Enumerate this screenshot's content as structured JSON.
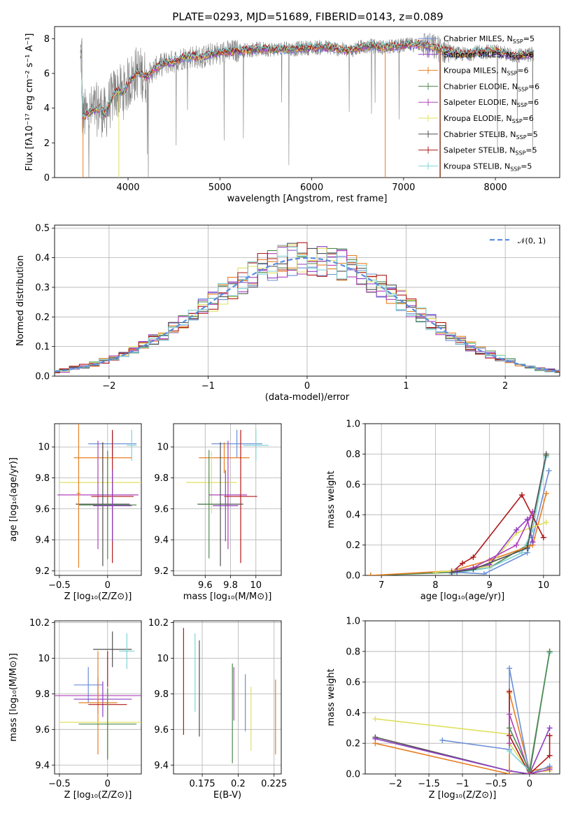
{
  "colors": {
    "grid": "#b0b0b0",
    "axis": "#000000",
    "gray": "#808080"
  },
  "models": [
    {
      "name": "Chabrier MILES, N",
      "sub": "SSP",
      "eq": "=5",
      "color": "#6b8fd6"
    },
    {
      "name": "Salpeter MILES, N",
      "sub": "SSP",
      "eq": "=6",
      "color": "#8e3ec2"
    },
    {
      "name": "Kroupa MILES, N",
      "sub": "SSP",
      "eq": "=6",
      "color": "#e67f22"
    },
    {
      "name": "Chabrier ELODIE, N",
      "sub": "SSP",
      "eq": "=6",
      "color": "#4f8a4f"
    },
    {
      "name": "Salpeter ELODIE, N",
      "sub": "SSP",
      "eq": "=6",
      "color": "#b040b8"
    },
    {
      "name": "Kroupa ELODIE, N",
      "sub": "SSP",
      "eq": "=6",
      "color": "#e0e060"
    },
    {
      "name": "Chabrier STELIB, N",
      "sub": "SSP",
      "eq": "=5",
      "color": "#505050"
    },
    {
      "name": "Salpeter STELIB, N",
      "sub": "SSP",
      "eq": "=5",
      "color": "#b01818"
    },
    {
      "name": "Kroupa STELIB, N",
      "sub": "SSP",
      "eq": "=5",
      "color": "#7fd4d4"
    }
  ],
  "chart_data": [
    {
      "id": "spectrum",
      "type": "line",
      "title": "PLATE=0293, MJD=51689, FIBERID=0143, z=0.089",
      "xlabel": "wavelength [Angstrom, rest frame]",
      "ylabel": "Flux [fλ10⁻¹⁷ erg cm⁻² s⁻¹ A⁻¹]",
      "xlim": [
        3200,
        8700
      ],
      "ylim": [
        0,
        8.7
      ],
      "xticks": [
        4000,
        5000,
        6000,
        7000,
        8000
      ],
      "yticks": [
        0,
        2,
        4,
        6,
        8
      ],
      "model_continuum": {
        "x": [
          3500,
          3600,
          3700,
          3750,
          3800,
          3850,
          3900,
          3950,
          4000,
          4100,
          4200,
          4300,
          4400,
          4500,
          4600,
          4700,
          4800,
          4900,
          5000,
          5200,
          5400,
          5600,
          5800,
          6000,
          6200,
          6400,
          6600,
          6800,
          7000,
          7200,
          7400,
          7600,
          7800,
          8000,
          8200,
          8400
        ],
        "y": [
          3.5,
          3.8,
          4.0,
          3.6,
          4.3,
          4.8,
          5.0,
          4.9,
          5.4,
          6.1,
          5.8,
          6.3,
          6.6,
          6.7,
          6.9,
          7.0,
          6.9,
          7.1,
          7.2,
          7.3,
          7.4,
          7.4,
          7.4,
          7.5,
          7.5,
          7.3,
          7.6,
          7.5,
          7.6,
          7.7,
          7.4,
          7.1,
          7.2,
          7.3,
          7.0,
          7.1
        ]
      }
    },
    {
      "id": "residuals",
      "type": "line",
      "xlabel": "(data-model)/error",
      "ylabel": "Normed distribution",
      "xlim": [
        -2.55,
        2.55
      ],
      "ylim": [
        0,
        0.51
      ],
      "xticks": [
        -2,
        -1,
        0,
        1,
        2
      ],
      "yticks": [
        0,
        0.1,
        0.2,
        0.3,
        0.4,
        0.5
      ],
      "gaussian_label": "𝒩(0, 1)",
      "gaussian_color": "#5b8de0"
    },
    {
      "id": "age_z",
      "type": "scatter",
      "xlabel": "Z [log₁₀(Z/Z⊙)]",
      "ylabel": "age  [log₁₀(age/yr)]",
      "xlim": [
        -0.55,
        0.35
      ],
      "ylim": [
        9.17,
        10.15
      ],
      "xticks": [
        -0.5,
        0.0
      ],
      "yticks": [
        9.2,
        9.4,
        9.6,
        9.8,
        10.0
      ],
      "points": [
        {
          "x": 0.05,
          "y": 10.02,
          "xerr": 0.25,
          "yerr": 0.08,
          "c": 0
        },
        {
          "x": 0.25,
          "y": 10.01,
          "xerr": 0.05,
          "yerr": 0.1,
          "c": 8
        },
        {
          "x": -0.05,
          "y": 9.93,
          "xerr": 0.3,
          "yerr": 0.1,
          "c": 2
        },
        {
          "x": 0.0,
          "y": 9.77,
          "xerr": 0.5,
          "yerr": 0.2,
          "c": 5
        },
        {
          "x": -0.1,
          "y": 9.69,
          "xerr": 0.42,
          "yerr": 0.35,
          "c": 4
        },
        {
          "x": 0.05,
          "y": 9.68,
          "xerr": 0.22,
          "yerr": 0.43,
          "c": 7
        },
        {
          "x": -0.05,
          "y": 9.63,
          "xerr": 0.28,
          "yerr": 0.4,
          "c": 6
        },
        {
          "x": 0.0,
          "y": 9.625,
          "xerr": 0.3,
          "yerr": 0.35,
          "c": 3
        },
        {
          "x": 0.05,
          "y": 9.62,
          "xerr": 0.2,
          "yerr": 0.23,
          "c": 1
        },
        {
          "x": -0.3,
          "y": 9.7,
          "xerr": 0.02,
          "yerr": 0.48,
          "c": 2
        }
      ]
    },
    {
      "id": "age_mass",
      "type": "scatter",
      "xlabel": "mass [log₁₀(M/M⊙)]",
      "ylabel": "",
      "xlim": [
        9.35,
        10.2
      ],
      "ylim": [
        9.17,
        10.15
      ],
      "xticks": [
        9.6,
        9.8,
        10.0
      ],
      "yticks": [
        9.2,
        9.4,
        9.6,
        9.8,
        10.0
      ],
      "points": [
        {
          "x": 9.85,
          "y": 10.02,
          "xerr": 0.2,
          "yerr": 0.09,
          "c": 0
        },
        {
          "x": 10.0,
          "y": 10.01,
          "xerr": 0.1,
          "yerr": 0.1,
          "c": 8
        },
        {
          "x": 9.75,
          "y": 9.93,
          "xerr": 0.2,
          "yerr": 0.1,
          "c": 2
        },
        {
          "x": 9.65,
          "y": 9.77,
          "xerr": 0.2,
          "yerr": 0.2,
          "c": 5
        },
        {
          "x": 9.78,
          "y": 9.69,
          "xerr": 0.15,
          "yerr": 0.35,
          "c": 4
        },
        {
          "x": 9.88,
          "y": 9.68,
          "xerr": 0.13,
          "yerr": 0.43,
          "c": 7
        },
        {
          "x": 9.72,
          "y": 9.63,
          "xerr": 0.18,
          "yerr": 0.4,
          "c": 6
        },
        {
          "x": 9.63,
          "y": 9.63,
          "xerr": 0.08,
          "yerr": 0.35,
          "c": 3
        },
        {
          "x": 9.76,
          "y": 9.62,
          "xerr": 0.1,
          "yerr": 0.23,
          "c": 1
        }
      ]
    },
    {
      "id": "weight_age",
      "type": "line",
      "xlabel": "age  [log₁₀(age/yr)]",
      "ylabel": "mass weight",
      "xlim": [
        6.7,
        10.3
      ],
      "ylim": [
        0,
        1.0
      ],
      "xticks": [
        7,
        8,
        9,
        10
      ],
      "yticks": [
        0.0,
        0.2,
        0.4,
        0.6,
        0.8,
        1.0
      ],
      "series": [
        {
          "c": 3,
          "x": [
            6.8,
            8.3,
            9.0,
            9.7,
            10.05
          ],
          "y": [
            0.0,
            0.02,
            0.05,
            0.2,
            0.79
          ]
        },
        {
          "c": 8,
          "x": [
            8.3,
            9.0,
            9.6,
            9.8,
            10.05
          ],
          "y": [
            0.01,
            0.05,
            0.15,
            0.3,
            0.78
          ]
        },
        {
          "c": 0,
          "x": [
            8.4,
            8.9,
            9.7,
            9.8,
            10.1
          ],
          "y": [
            0.02,
            0.01,
            0.15,
            0.25,
            0.69
          ]
        },
        {
          "c": 2,
          "x": [
            6.8,
            8.3,
            9.0,
            9.8,
            10.05
          ],
          "y": [
            0.0,
            0.03,
            0.1,
            0.2,
            0.54
          ]
        },
        {
          "c": 7,
          "x": [
            8.3,
            8.5,
            8.7,
            9.6,
            10.0
          ],
          "y": [
            0.02,
            0.08,
            0.12,
            0.53,
            0.25
          ]
        },
        {
          "c": 5,
          "x": [
            8.0,
            9.0,
            9.5,
            10.05
          ],
          "y": [
            0.02,
            0.06,
            0.28,
            0.35
          ]
        },
        {
          "c": 1,
          "x": [
            8.4,
            9.0,
            9.5,
            9.7,
            9.8
          ],
          "y": [
            0.03,
            0.07,
            0.3,
            0.37,
            0.22
          ]
        },
        {
          "c": 4,
          "x": [
            8.3,
            8.7,
            9.5,
            9.8,
            9.75
          ],
          "y": [
            0.02,
            0.05,
            0.2,
            0.42,
            0.38
          ]
        },
        {
          "c": 6,
          "x": [
            8.3,
            8.7,
            9.7,
            10.05
          ],
          "y": [
            0.02,
            0.04,
            0.18,
            0.8
          ]
        }
      ]
    },
    {
      "id": "mass_z",
      "type": "scatter",
      "xlabel": "Z [log₁₀(Z/Z⊙)]",
      "ylabel": "mass [log₁₀(M/M⊙)]",
      "xlim": [
        -0.55,
        0.35
      ],
      "ylim": [
        9.35,
        10.21
      ],
      "xticks": [
        -0.5,
        0.0
      ],
      "yticks": [
        9.4,
        9.6,
        9.8,
        10.0,
        10.2
      ],
      "points": [
        {
          "x": 0.05,
          "y": 10.05,
          "xerr": 0.2,
          "yerr": 0.1,
          "c": 6
        },
        {
          "x": 0.2,
          "y": 10.04,
          "xerr": 0.08,
          "yerr": 0.1,
          "c": 8
        },
        {
          "x": -0.2,
          "y": 9.85,
          "xerr": 0.15,
          "yerr": 0.1,
          "c": 0
        },
        {
          "x": -0.1,
          "y": 9.79,
          "xerr": 0.5,
          "yerr": 0.1,
          "c": 4
        },
        {
          "x": -0.05,
          "y": 9.77,
          "xerr": 0.3,
          "yerr": 0.1,
          "c": 1
        },
        {
          "x": -0.1,
          "y": 9.75,
          "xerr": 0.2,
          "yerr": 0.29,
          "c": 2
        },
        {
          "x": 0.0,
          "y": 9.74,
          "xerr": 0.2,
          "yerr": 0.3,
          "c": 7
        },
        {
          "x": 0.0,
          "y": 9.64,
          "xerr": 0.5,
          "yerr": 0.2,
          "c": 5
        },
        {
          "x": 0.0,
          "y": 9.63,
          "xerr": 0.3,
          "yerr": 0.2,
          "c": 3
        }
      ]
    },
    {
      "id": "mass_ebv",
      "type": "scatter",
      "xlabel": "E(B-V)",
      "ylabel": "",
      "xlim": [
        0.155,
        0.23
      ],
      "ylim": [
        9.35,
        10.21
      ],
      "xticks": [
        0.175,
        0.2,
        0.225
      ],
      "yticks": [
        9.4,
        9.6,
        9.8,
        10.0,
        10.2
      ],
      "points": [
        {
          "x": 0.162,
          "y": 9.87,
          "yerr": 0.3,
          "c": 7
        },
        {
          "x": 0.17,
          "y": 9.92,
          "yerr": 0.22,
          "c": 8
        },
        {
          "x": 0.173,
          "y": 9.83,
          "yerr": 0.27,
          "c": 6
        },
        {
          "x": 0.196,
          "y": 9.69,
          "yerr": 0.28,
          "c": 3
        },
        {
          "x": 0.197,
          "y": 9.8,
          "yerr": 0.15,
          "c": 4
        },
        {
          "x": 0.205,
          "y": 9.75,
          "yerr": 0.16,
          "c": 0
        },
        {
          "x": 0.209,
          "y": 9.66,
          "yerr": 0.18,
          "c": 5
        },
        {
          "x": 0.226,
          "y": 9.67,
          "yerr": 0.21,
          "c": 2
        }
      ]
    },
    {
      "id": "weight_z",
      "type": "line",
      "xlabel": "Z [log₁₀(Z/Z⊙)]",
      "ylabel": "mass weight",
      "xlim": [
        -2.45,
        0.45
      ],
      "ylim": [
        0,
        1.0
      ],
      "xticks": [
        -2.0,
        -1.5,
        -1.0,
        -0.5,
        0.0
      ],
      "yticks": [
        0.0,
        0.2,
        0.4,
        0.6,
        0.8,
        1.0
      ],
      "series": [
        {
          "c": 5,
          "x": [
            -2.3,
            -0.3,
            -0.3,
            0.0,
            0.3
          ],
          "y": [
            0.36,
            0.26,
            0.2,
            0.01,
            0.02
          ]
        },
        {
          "c": 6,
          "x": [
            -2.3,
            -0.3,
            0.0,
            0.3
          ],
          "y": [
            0.24,
            0.02,
            0.0,
            0.8
          ]
        },
        {
          "c": 1,
          "x": [
            -2.3,
            -0.3,
            0.0,
            0.3
          ],
          "y": [
            0.23,
            0.02,
            0.0,
            0.3
          ]
        },
        {
          "c": 2,
          "x": [
            -2.3,
            -0.3,
            -0.3,
            0.0,
            0.3
          ],
          "y": [
            0.2,
            0.0,
            0.53,
            0.02,
            0.04
          ]
        },
        {
          "c": 0,
          "x": [
            -1.3,
            -0.3,
            -0.3,
            0.0,
            0.3
          ],
          "y": [
            0.22,
            0.16,
            0.69,
            0.0,
            0.05
          ]
        },
        {
          "c": 7,
          "x": [
            -0.3,
            -0.3,
            0.0,
            0.3,
            0.3
          ],
          "y": [
            0.54,
            0.25,
            0.0,
            0.12,
            0.25
          ]
        },
        {
          "c": 4,
          "x": [
            -0.3,
            -0.3,
            0.0,
            0.3
          ],
          "y": [
            0.2,
            0.39,
            0.0,
            0.03
          ]
        },
        {
          "c": 8,
          "x": [
            -0.3,
            0.0,
            0.3
          ],
          "y": [
            0.15,
            0.02,
            0.79
          ]
        },
        {
          "c": 3,
          "x": [
            -0.3,
            0.0,
            0.3
          ],
          "y": [
            0.3,
            0.02,
            0.8
          ]
        }
      ]
    }
  ]
}
